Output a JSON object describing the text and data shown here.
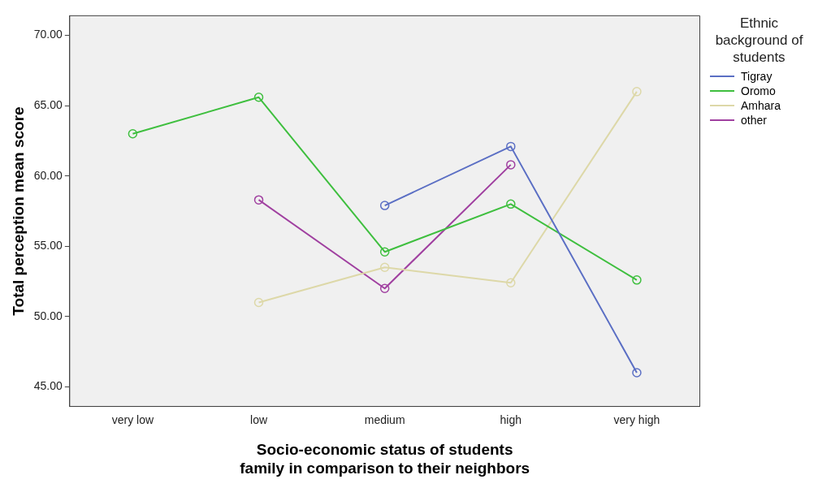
{
  "chart_data": {
    "type": "line",
    "xlabel": "Socio-economic status of students family in comparison to their neighbors",
    "ylabel": "Total perception mean score",
    "legend_title": "Ethnic background of students",
    "categories": [
      "very low",
      "low",
      "medium",
      "high",
      "very high"
    ],
    "series": [
      {
        "name": "Tigray",
        "color": "#5b6fc4",
        "values": [
          null,
          null,
          57.9,
          62.1,
          46.0
        ]
      },
      {
        "name": "Oromo",
        "color": "#3fbf3f",
        "values": [
          63.0,
          65.6,
          54.6,
          58.0,
          52.6
        ]
      },
      {
        "name": "Amhara",
        "color": "#ddd8a8",
        "values": [
          null,
          51.0,
          53.5,
          52.4,
          66.0
        ]
      },
      {
        "name": "other",
        "color": "#a040a0",
        "values": [
          null,
          58.3,
          52.0,
          60.8,
          null
        ]
      }
    ],
    "ylim": [
      43.6,
      71.4
    ],
    "yticks": [
      {
        "value": 45,
        "label": "45.00"
      },
      {
        "value": 50,
        "label": "50.00"
      },
      {
        "value": 55,
        "label": "55.00"
      },
      {
        "value": 60,
        "label": "60.00"
      },
      {
        "value": 65,
        "label": "65.00"
      },
      {
        "value": 70,
        "label": "70.00"
      }
    ],
    "grid": false,
    "legend": "right",
    "marker": "circle",
    "line_style": "solid"
  }
}
